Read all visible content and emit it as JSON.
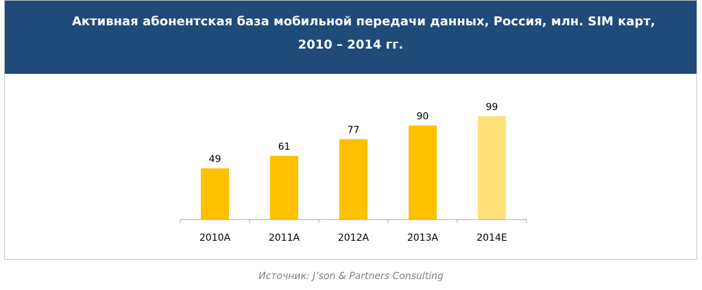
{
  "chart_data": {
    "type": "bar",
    "title_line1": "Активная абонентская база мобильной передачи данных, Россия, млн. SIM карт,",
    "title_line2": "2010 – 2014 гг.",
    "categories": [
      "2010A",
      "2011A",
      "2012A",
      "2013A",
      "2014E"
    ],
    "values": [
      49,
      61,
      77,
      90,
      99
    ],
    "value_labels": [
      "49",
      "61",
      "77",
      "90",
      "99"
    ],
    "ylim": [
      0,
      110
    ],
    "xlabel": "",
    "ylabel": "",
    "grid": false,
    "colors": {
      "actual": "#ffc000",
      "estimate": "#ffe17a",
      "header_bg": "#1f4a7a",
      "axis": "#a6a6a6"
    },
    "estimate_flags": [
      false,
      false,
      false,
      false,
      true
    ]
  },
  "source": "Источник: J’son & Partners Consulting"
}
